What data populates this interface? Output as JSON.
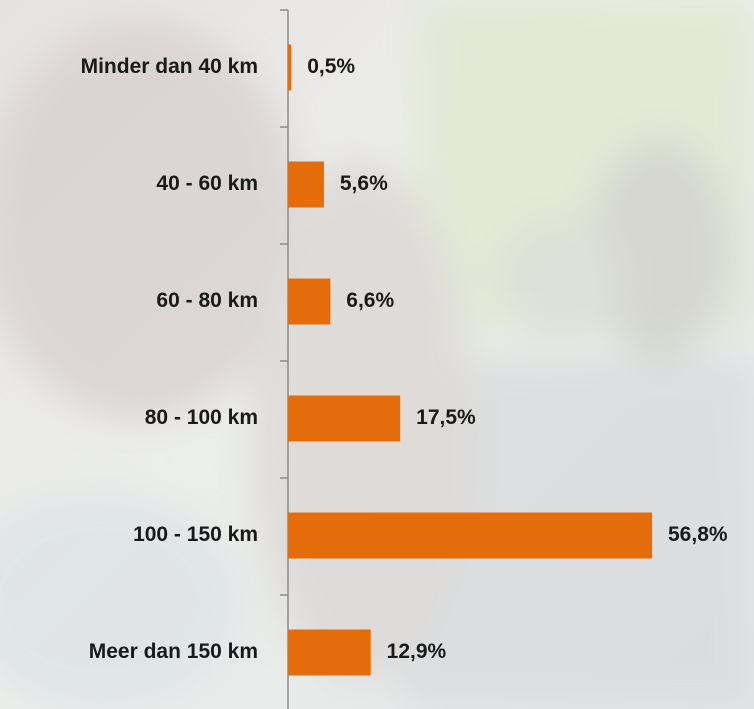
{
  "chart_data": {
    "type": "bar",
    "orientation": "horizontal",
    "categories": [
      "Minder dan 40 km",
      "40 - 60 km",
      "60 - 80 km",
      "80 - 100 km",
      "100 - 150 km",
      "Meer dan 150 km"
    ],
    "values": [
      0.5,
      5.6,
      6.6,
      17.5,
      56.8,
      12.9
    ],
    "value_labels": [
      "0,5%",
      "5,6%",
      "6,6%",
      "17,5%",
      "56,8%",
      "12,9%"
    ],
    "color": "#e46c0a"
  }
}
